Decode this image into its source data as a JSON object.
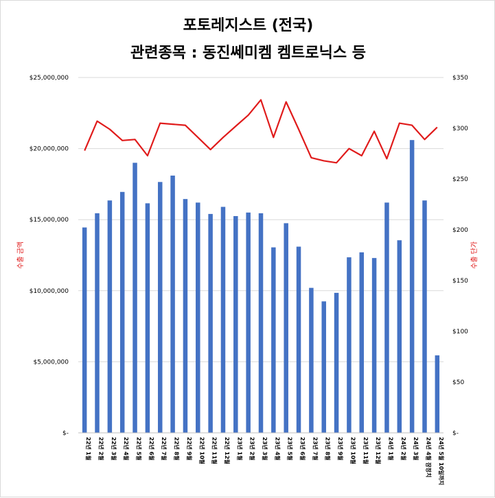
{
  "chart_data": {
    "type": "bar+line",
    "title_line1": "포토레지스트 (전국)",
    "title_line2": "관련종목 : 동진쎄미켐 켐트로닉스 등",
    "ylabel_left": "수출 금액",
    "ylabel_right": "수출 단가",
    "ylim_left": [
      0,
      25000000
    ],
    "ylim_right": [
      0,
      350
    ],
    "left_ticks": [
      {
        "value": 0,
        "label": "$-"
      },
      {
        "value": 5000000,
        "label": "$5,000,000"
      },
      {
        "value": 10000000,
        "label": "$10,000,000"
      },
      {
        "value": 15000000,
        "label": "$15,000,000"
      },
      {
        "value": 20000000,
        "label": "$20,000,000"
      },
      {
        "value": 25000000,
        "label": "$25,000,000"
      }
    ],
    "right_ticks": [
      {
        "value": 0,
        "label": "$-"
      },
      {
        "value": 50,
        "label": "$50"
      },
      {
        "value": 100,
        "label": "$100"
      },
      {
        "value": 150,
        "label": "$150"
      },
      {
        "value": 200,
        "label": "$200"
      },
      {
        "value": 250,
        "label": "$250"
      },
      {
        "value": 300,
        "label": "$300"
      },
      {
        "value": 350,
        "label": "$350"
      }
    ],
    "categories": [
      "22년 1월",
      "22년 2월",
      "22년 3월",
      "22년 4월",
      "22년 5월",
      "22년 6월",
      "22년 7월",
      "22년 8월",
      "22년 9월",
      "22년 10월",
      "22년 11월",
      "22년 12월",
      "23년 1월",
      "23년 2월",
      "23년 3월",
      "23년 4월",
      "23년 5월",
      "23년 6월",
      "23년 7월",
      "23년 8월",
      "23년 9월",
      "23년 10월",
      "23년 11월",
      "23년 12월",
      "24년 1월",
      "24년 2월",
      "24년 3월",
      "24년 4월 잠정치",
      "24년 5월 10일까지"
    ],
    "bar_values": [
      14450000,
      15450000,
      16350000,
      16950000,
      19000000,
      16150000,
      17650000,
      18100000,
      16450000,
      16200000,
      15400000,
      15900000,
      15250000,
      15500000,
      15450000,
      13050000,
      14750000,
      13100000,
      10200000,
      9250000,
      9850000,
      12350000,
      12700000,
      12300000,
      16200000,
      13550000,
      20600000,
      16350000,
      5450000
    ],
    "line_values": [
      278,
      307,
      299,
      288,
      289,
      273,
      305,
      304,
      303,
      291,
      279,
      291,
      302,
      313,
      328,
      291,
      326,
      299,
      271,
      268,
      266,
      280,
      273,
      297,
      270,
      305,
      303,
      289,
      301
    ],
    "bar_color": "#4472c4",
    "line_color": "#e01b1b",
    "axis_label_color": "#e01b1b"
  }
}
